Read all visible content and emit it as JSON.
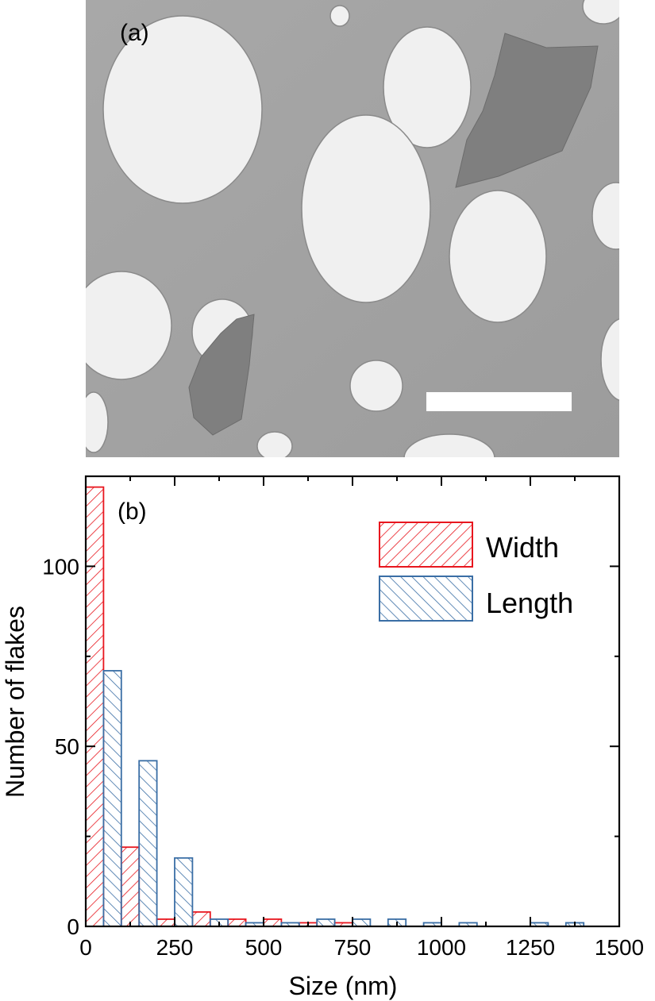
{
  "panel_a": {
    "label": "(a)"
  },
  "chart_data": {
    "type": "bar",
    "panel_label": "(b)",
    "xlabel": "Size (nm)",
    "ylabel": "Number of flakes",
    "xlim": [
      0,
      1500
    ],
    "ylim": [
      0,
      125
    ],
    "xticks": [
      0,
      250,
      500,
      750,
      1000,
      1250,
      1500
    ],
    "yticks": [
      0,
      50,
      100
    ],
    "bin_width": 50,
    "legend_position": "top-right",
    "series": [
      {
        "name": "Width",
        "color": "#e8161e",
        "hatch": "forward-diagonal",
        "bins": [
          {
            "x": 0,
            "count": 122
          },
          {
            "x": 100,
            "count": 22
          },
          {
            "x": 200,
            "count": 2
          },
          {
            "x": 300,
            "count": 4
          },
          {
            "x": 400,
            "count": 2
          },
          {
            "x": 500,
            "count": 2
          },
          {
            "x": 600,
            "count": 1
          },
          {
            "x": 700,
            "count": 1
          }
        ]
      },
      {
        "name": "Length",
        "color": "#3a6ea5",
        "hatch": "back-diagonal",
        "bins": [
          {
            "x": 50,
            "count": 71
          },
          {
            "x": 150,
            "count": 46
          },
          {
            "x": 250,
            "count": 19
          },
          {
            "x": 350,
            "count": 2
          },
          {
            "x": 450,
            "count": 1
          },
          {
            "x": 550,
            "count": 1
          },
          {
            "x": 650,
            "count": 2
          },
          {
            "x": 750,
            "count": 2
          },
          {
            "x": 850,
            "count": 2
          },
          {
            "x": 950,
            "count": 1
          },
          {
            "x": 1050,
            "count": 1
          },
          {
            "x": 1250,
            "count": 1
          },
          {
            "x": 1350,
            "count": 1
          }
        ]
      }
    ]
  }
}
